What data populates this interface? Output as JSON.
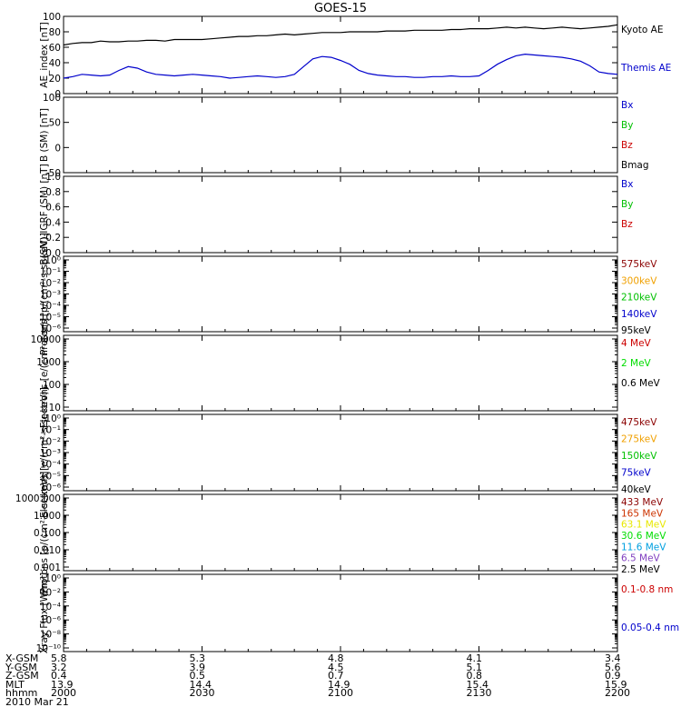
{
  "title": "GOES-15",
  "date": "2010 Mar 21",
  "colors": {
    "black": "#000000",
    "blue": "#0000cc",
    "green": "#00c000",
    "red": "#cc0000",
    "darkred": "#8b0000",
    "orange": "#f0a000",
    "cyan": "#00b0b0",
    "yellow": "#e8e800",
    "lime": "#00dd00",
    "lightblue": "#00a0e0",
    "purple": "#8040c0"
  },
  "chart_data": [
    {
      "type": "line",
      "ylabel": "AE_index [nT]",
      "ylim": [
        0,
        100
      ],
      "yticks": [
        "0",
        "20",
        "40",
        "60",
        "80",
        "100"
      ],
      "x": [
        2000,
        2002,
        2004,
        2006,
        2008,
        2010,
        2012,
        2014,
        2016,
        2018,
        2020,
        2022,
        2024,
        2026,
        2028,
        2030,
        2032,
        2034,
        2036,
        2038,
        2040,
        2042,
        2044,
        2046,
        2048,
        2050,
        2052,
        2054,
        2056,
        2058,
        2100,
        2102,
        2104,
        2106,
        2108,
        2110,
        2112,
        2114,
        2116,
        2118,
        2120,
        2122,
        2124,
        2126,
        2128,
        2130,
        2132,
        2134,
        2136,
        2138,
        2140,
        2142,
        2144,
        2146,
        2148,
        2150,
        2152,
        2154,
        2156,
        2158,
        2200
      ],
      "series": [
        {
          "name": "Kyoto AE",
          "color": "#000000",
          "values": [
            63,
            65,
            66,
            66,
            68,
            67,
            67,
            68,
            68,
            69,
            69,
            68,
            70,
            70,
            70,
            70,
            71,
            72,
            73,
            74,
            74,
            75,
            75,
            76,
            77,
            76,
            77,
            78,
            79,
            79,
            79,
            80,
            80,
            80,
            80,
            81,
            81,
            81,
            82,
            82,
            82,
            82,
            83,
            83,
            84,
            84,
            84,
            85,
            86,
            85,
            86,
            85,
            84,
            85,
            86,
            85,
            84,
            85,
            86,
            87,
            89
          ]
        },
        {
          "name": "Themis AE",
          "color": "#0000cc",
          "values": [
            20,
            22,
            25,
            24,
            23,
            24,
            30,
            35,
            33,
            28,
            25,
            24,
            23,
            24,
            25,
            24,
            23,
            22,
            20,
            21,
            22,
            23,
            22,
            21,
            22,
            25,
            35,
            45,
            48,
            47,
            43,
            38,
            30,
            26,
            24,
            23,
            22,
            22,
            21,
            21,
            22,
            22,
            23,
            22,
            22,
            23,
            30,
            38,
            44,
            49,
            51,
            50,
            49,
            48,
            47,
            45,
            42,
            36,
            28,
            26,
            25
          ]
        }
      ]
    },
    {
      "type": "line",
      "ylabel": "B (SM) [nT]",
      "ylim": [
        -50,
        100
      ],
      "yticks": [
        "-50",
        "0",
        "50",
        "100"
      ],
      "ytick_values": [
        -50,
        0,
        50,
        100
      ],
      "series": [
        {
          "name": "Bx",
          "color": "#0000cc",
          "values": []
        },
        {
          "name": "By",
          "color": "#00c000",
          "values": []
        },
        {
          "name": "Bz",
          "color": "#cc0000",
          "values": []
        },
        {
          "name": "Bmag",
          "color": "#000000",
          "values": []
        }
      ]
    },
    {
      "type": "line",
      "ylabel": "B(SM)-IGRF (SM) [nT]",
      "ylim": [
        0,
        1
      ],
      "yticks": [
        "0.0",
        "0.2",
        "0.4",
        "0.6",
        "0.8",
        "1.0"
      ],
      "series": [
        {
          "name": "Bx",
          "color": "#0000cc",
          "values": []
        },
        {
          "name": "By",
          "color": "#00c000",
          "values": []
        },
        {
          "name": "Bz",
          "color": "#cc0000",
          "values": []
        }
      ]
    },
    {
      "type": "line",
      "ylabel": "Protons [p/(cm²-s-sr-keV)]",
      "log": true,
      "yticks": [
        "10⁰",
        "10⁻¹",
        "10⁻²",
        "10⁻³",
        "10⁻⁴",
        "10⁻⁵",
        "10⁻⁶"
      ],
      "series": [
        {
          "name": "575keV",
          "color": "#8b0000",
          "values": []
        },
        {
          "name": "300keV",
          "color": "#f0a000",
          "values": []
        },
        {
          "name": "210keV",
          "color": "#00c000",
          "values": []
        },
        {
          "name": "140keV",
          "color": "#0000cc",
          "values": []
        },
        {
          "name": "95keV",
          "color": "#000000",
          "values": []
        }
      ]
    },
    {
      "type": "line",
      "ylabel": "Electrons [e/(cm²-s-sr)]",
      "log": true,
      "yticks": [
        "10000",
        "1000",
        "100",
        "10"
      ],
      "series": [
        {
          "name": "4 MeV",
          "color": "#cc0000",
          "values": []
        },
        {
          "name": "2 MeV",
          "color": "#00dd00",
          "values": []
        },
        {
          "name": "0.6 MeV",
          "color": "#000000",
          "values": []
        }
      ]
    },
    {
      "type": "line",
      "ylabel": "Electrons [e/(cm²-s-sr-keV)]",
      "log": true,
      "yticks": [
        "10⁰",
        "10⁻¹",
        "10⁻²",
        "10⁻³",
        "10⁻⁴",
        "10⁻⁵",
        "10⁻⁶"
      ],
      "series": [
        {
          "name": "475keV",
          "color": "#8b0000",
          "values": []
        },
        {
          "name": "275keV",
          "color": "#f0a000",
          "values": []
        },
        {
          "name": "150keV",
          "color": "#00c000",
          "values": []
        },
        {
          "name": "75keV",
          "color": "#0000cc",
          "values": []
        },
        {
          "name": "40keV",
          "color": "#000000",
          "values": []
        }
      ]
    },
    {
      "type": "line",
      "ylabel": "Protons [p/(cm²-s-sr-keV)]",
      "log": true,
      "yticks": [
        "1000.000",
        "1.000",
        "0.100",
        "0.010",
        "0.001"
      ],
      "series": [
        {
          "name": "433 MeV",
          "color": "#8b0000",
          "values": []
        },
        {
          "name": "165 MeV",
          "color": "#cc3300",
          "values": []
        },
        {
          "name": "63.1 MeV",
          "color": "#e8e800",
          "values": []
        },
        {
          "name": "30.6 MeV",
          "color": "#00dd00",
          "values": []
        },
        {
          "name": "11.6 MeV",
          "color": "#00a0e0",
          "values": []
        },
        {
          "name": "6.5 MeV",
          "color": "#8040c0",
          "values": []
        },
        {
          "name": "2.5 MeV",
          "color": "#000000",
          "values": []
        }
      ]
    },
    {
      "type": "line",
      "ylabel": "Xray Flux [W/m²]",
      "log": true,
      "yticks": [
        "10⁰",
        "10⁻²",
        "10⁻⁴",
        "10⁻⁶",
        "10⁻⁸",
        "10⁻¹⁰"
      ],
      "series": [
        {
          "name": "0.1-0.8 nm",
          "color": "#cc0000",
          "values": []
        },
        {
          "name": "0.05-0.4 nm",
          "color": "#0000cc",
          "values": []
        }
      ]
    }
  ],
  "ephemeris": {
    "rows": [
      {
        "label": "X-GSM",
        "values": [
          "5.8",
          "5.3",
          "4.8",
          "4.1",
          "3.4"
        ]
      },
      {
        "label": "Y-GSM",
        "values": [
          "3.2",
          "3.9",
          "4.5",
          "5.1",
          "5.6"
        ]
      },
      {
        "label": "Z-GSM",
        "values": [
          "0.4",
          "0.5",
          "0.7",
          "0.8",
          "0.9"
        ]
      },
      {
        "label": "MLT",
        "values": [
          "13.9",
          "14.4",
          "14.9",
          "15.4",
          "15.9"
        ]
      },
      {
        "label": "hhmm",
        "values": [
          "2000",
          "2030",
          "2100",
          "2130",
          "2200"
        ]
      }
    ]
  }
}
